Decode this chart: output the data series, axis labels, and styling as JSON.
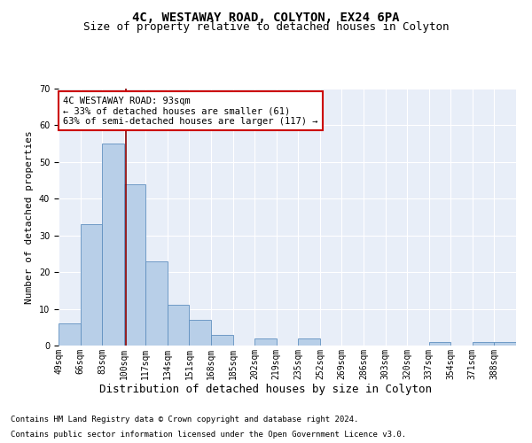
{
  "title_line1": "4C, WESTAWAY ROAD, COLYTON, EX24 6PA",
  "title_line2": "Size of property relative to detached houses in Colyton",
  "xlabel": "Distribution of detached houses by size in Colyton",
  "ylabel": "Number of detached properties",
  "bin_labels": [
    "49sqm",
    "66sqm",
    "83sqm",
    "100sqm",
    "117sqm",
    "134sqm",
    "151sqm",
    "168sqm",
    "185sqm",
    "202sqm",
    "219sqm",
    "235sqm",
    "252sqm",
    "269sqm",
    "286sqm",
    "303sqm",
    "320sqm",
    "337sqm",
    "354sqm",
    "371sqm",
    "388sqm"
  ],
  "bar_values": [
    6,
    33,
    55,
    44,
    23,
    11,
    7,
    3,
    0,
    2,
    0,
    2,
    0,
    0,
    0,
    0,
    0,
    1,
    0,
    1,
    1
  ],
  "bar_color": "#b8cfe8",
  "bar_edgecolor": "#6090c0",
  "bar_linewidth": 0.6,
  "vline_x_bin": 2.588,
  "vline_color": "#8b0000",
  "ylim": [
    0,
    70
  ],
  "yticks": [
    0,
    10,
    20,
    30,
    40,
    50,
    60,
    70
  ],
  "annotation_text": "4C WESTAWAY ROAD: 93sqm\n← 33% of detached houses are smaller (61)\n63% of semi-detached houses are larger (117) →",
  "annotation_box_edgecolor": "#cc0000",
  "annotation_box_facecolor": "#ffffff",
  "footnote1": "Contains HM Land Registry data © Crown copyright and database right 2024.",
  "footnote2": "Contains public sector information licensed under the Open Government Licence v3.0.",
  "background_color": "#e8eef8",
  "grid_color": "#ffffff",
  "title_fontsize": 10,
  "subtitle_fontsize": 9,
  "ylabel_fontsize": 8,
  "xlabel_fontsize": 9,
  "tick_fontsize": 7,
  "annotation_fontsize": 7.5,
  "footnote_fontsize": 6.5
}
